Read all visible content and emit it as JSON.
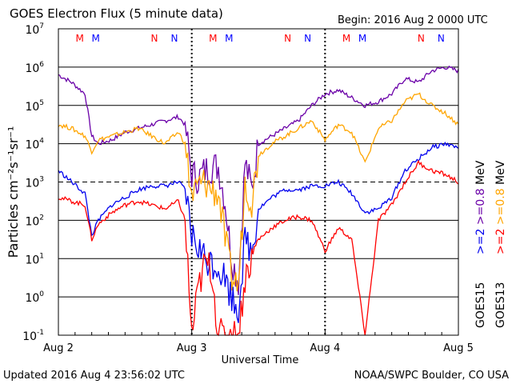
{
  "chart_data": {
    "type": "line",
    "title": "GOES Electron Flux (5 minute data)",
    "begin_label": "Begin: 2016 Aug 2 0000 UTC",
    "xlabel": "Universal Time",
    "ylabel": "Particles cm⁻²s⁻¹sr⁻¹",
    "x_ticks": [
      "Aug 2",
      "Aug 3",
      "Aug 4",
      "Aug 5"
    ],
    "xlim_days": [
      0,
      3
    ],
    "y_ticks": [
      {
        "base": "10",
        "exp": "-1"
      },
      {
        "base": "10",
        "exp": "0"
      },
      {
        "base": "10",
        "exp": "1"
      },
      {
        "base": "10",
        "exp": "2"
      },
      {
        "base": "10",
        "exp": "3"
      },
      {
        "base": "10",
        "exp": "4"
      },
      {
        "base": "10",
        "exp": "5"
      },
      {
        "base": "10",
        "exp": "6"
      },
      {
        "base": "10",
        "exp": "7"
      }
    ],
    "ylim_log10": [
      -1,
      7
    ],
    "dashed_threshold_log10": 3,
    "markers": [
      {
        "label": "M",
        "day": 0.16,
        "color": "#ff0000"
      },
      {
        "label": "M",
        "day": 0.28,
        "color": "#0000ff"
      },
      {
        "label": "N",
        "day": 0.72,
        "color": "#ff0000"
      },
      {
        "label": "N",
        "day": 0.87,
        "color": "#0000ff"
      },
      {
        "label": "M",
        "day": 1.16,
        "color": "#ff0000"
      },
      {
        "label": "M",
        "day": 1.28,
        "color": "#0000ff"
      },
      {
        "label": "N",
        "day": 1.72,
        "color": "#ff0000"
      },
      {
        "label": "N",
        "day": 1.87,
        "color": "#0000ff"
      },
      {
        "label": "M",
        "day": 2.16,
        "color": "#ff0000"
      },
      {
        "label": "M",
        "day": 2.28,
        "color": "#0000ff"
      },
      {
        "label": "N",
        "day": 2.72,
        "color": "#ff0000"
      },
      {
        "label": "N",
        "day": 2.87,
        "color": "#0000ff"
      }
    ],
    "series": [
      {
        "name": "GOES15 >=0.8 MeV",
        "color": "#6a00a8",
        "x": [
          0,
          0.1,
          0.2,
          0.25,
          0.3,
          0.4,
          0.5,
          0.6,
          0.7,
          0.8,
          0.9,
          0.95,
          1.0,
          1.05,
          1.1,
          1.15,
          1.2,
          1.25,
          1.3,
          1.35,
          1.4,
          1.45,
          1.5,
          1.6,
          1.7,
          1.8,
          1.9,
          2.0,
          2.1,
          2.2,
          2.3,
          2.4,
          2.5,
          2.6,
          2.7,
          2.8,
          2.9,
          3.0
        ],
        "y": [
          5.8,
          5.6,
          5.3,
          4.2,
          4.0,
          4.1,
          4.3,
          4.4,
          4.5,
          4.6,
          4.7,
          4.5,
          3.2,
          3.1,
          3.3,
          3.4,
          3.4,
          2.5,
          1.0,
          0.4,
          3.5,
          2.8,
          4.0,
          4.2,
          4.4,
          4.6,
          5.0,
          5.3,
          5.4,
          5.2,
          5.0,
          5.1,
          5.3,
          5.7,
          5.6,
          5.9,
          6.0,
          5.9
        ]
      },
      {
        "name": "GOES13 >=0.8 MeV",
        "color": "#ffa500",
        "x": [
          0,
          0.1,
          0.2,
          0.25,
          0.3,
          0.4,
          0.5,
          0.6,
          0.7,
          0.8,
          0.9,
          0.95,
          1.0,
          1.05,
          1.1,
          1.15,
          1.2,
          1.25,
          1.3,
          1.35,
          1.4,
          1.45,
          1.5,
          1.6,
          1.7,
          1.8,
          1.9,
          2.0,
          2.1,
          2.2,
          2.3,
          2.4,
          2.5,
          2.6,
          2.7,
          2.8,
          2.9,
          3.0
        ],
        "y": [
          4.5,
          4.4,
          4.2,
          3.8,
          4.1,
          4.2,
          4.3,
          4.4,
          4.2,
          4.0,
          4.3,
          4.0,
          2.6,
          2.9,
          3.0,
          2.8,
          2.7,
          1.5,
          0.5,
          0.3,
          3.0,
          2.5,
          3.7,
          4.0,
          4.2,
          4.4,
          4.6,
          4.1,
          4.5,
          4.3,
          3.5,
          4.4,
          4.6,
          5.1,
          5.3,
          5.0,
          4.8,
          4.5
        ]
      },
      {
        "name": "GOES15 >=2 MeV",
        "color": "#0000ee",
        "x": [
          0,
          0.1,
          0.2,
          0.25,
          0.3,
          0.4,
          0.5,
          0.6,
          0.7,
          0.8,
          0.9,
          0.95,
          1.0,
          1.05,
          1.1,
          1.15,
          1.2,
          1.25,
          1.3,
          1.35,
          1.4,
          1.45,
          1.5,
          1.6,
          1.7,
          1.8,
          1.9,
          2.0,
          2.1,
          2.2,
          2.3,
          2.4,
          2.5,
          2.6,
          2.7,
          2.8,
          2.9,
          3.0
        ],
        "y": [
          3.3,
          3.0,
          2.7,
          1.6,
          2.0,
          2.4,
          2.6,
          2.8,
          2.9,
          2.9,
          3.0,
          2.8,
          1.6,
          1.3,
          1.0,
          0.9,
          0.8,
          0.5,
          0.0,
          -0.3,
          1.5,
          1.2,
          2.3,
          2.6,
          2.8,
          2.8,
          2.9,
          2.9,
          3.0,
          2.7,
          2.2,
          2.3,
          2.6,
          3.3,
          3.6,
          3.9,
          4.0,
          3.9
        ]
      },
      {
        "name": "GOES13 >=2 MeV",
        "color": "#ff0000",
        "x": [
          0,
          0.1,
          0.2,
          0.25,
          0.3,
          0.4,
          0.5,
          0.6,
          0.7,
          0.8,
          0.9,
          0.95,
          1.0,
          1.05,
          1.1,
          1.15,
          1.2,
          1.25,
          1.3,
          1.35,
          1.4,
          1.45,
          1.5,
          1.6,
          1.7,
          1.8,
          1.9,
          2.0,
          2.1,
          2.2,
          2.3,
          2.4,
          2.5,
          2.6,
          2.7,
          2.8,
          2.9,
          3.0
        ],
        "y": [
          2.6,
          2.5,
          2.4,
          1.5,
          1.9,
          2.2,
          2.4,
          2.5,
          2.4,
          2.3,
          2.5,
          2.0,
          -1.0,
          0.2,
          0.9,
          0.7,
          -1.0,
          -1.0,
          -1.0,
          -1.0,
          0.5,
          1.0,
          1.5,
          1.8,
          2.0,
          2.1,
          2.0,
          1.2,
          1.8,
          1.5,
          -1.0,
          2.0,
          2.4,
          3.0,
          3.5,
          3.3,
          3.2,
          3.0
        ]
      }
    ],
    "legend": [
      {
        "sat": "GOES15",
        "items": [
          {
            "text": ">=2",
            "color": "#0000ee"
          },
          {
            "text": ">=0.8",
            "color": "#6a00a8"
          }
        ]
      },
      {
        "sat": "GOES13",
        "items": [
          {
            "text": ">=2",
            "color": "#ff0000"
          },
          {
            "text": ">=0.8",
            "color": "#ffa500"
          }
        ]
      }
    ],
    "legend_unit": "MeV"
  },
  "footer": {
    "updated": "Updated 2016 Aug  4 23:56:02 UTC",
    "source": "NOAA/SWPC Boulder, CO USA"
  }
}
